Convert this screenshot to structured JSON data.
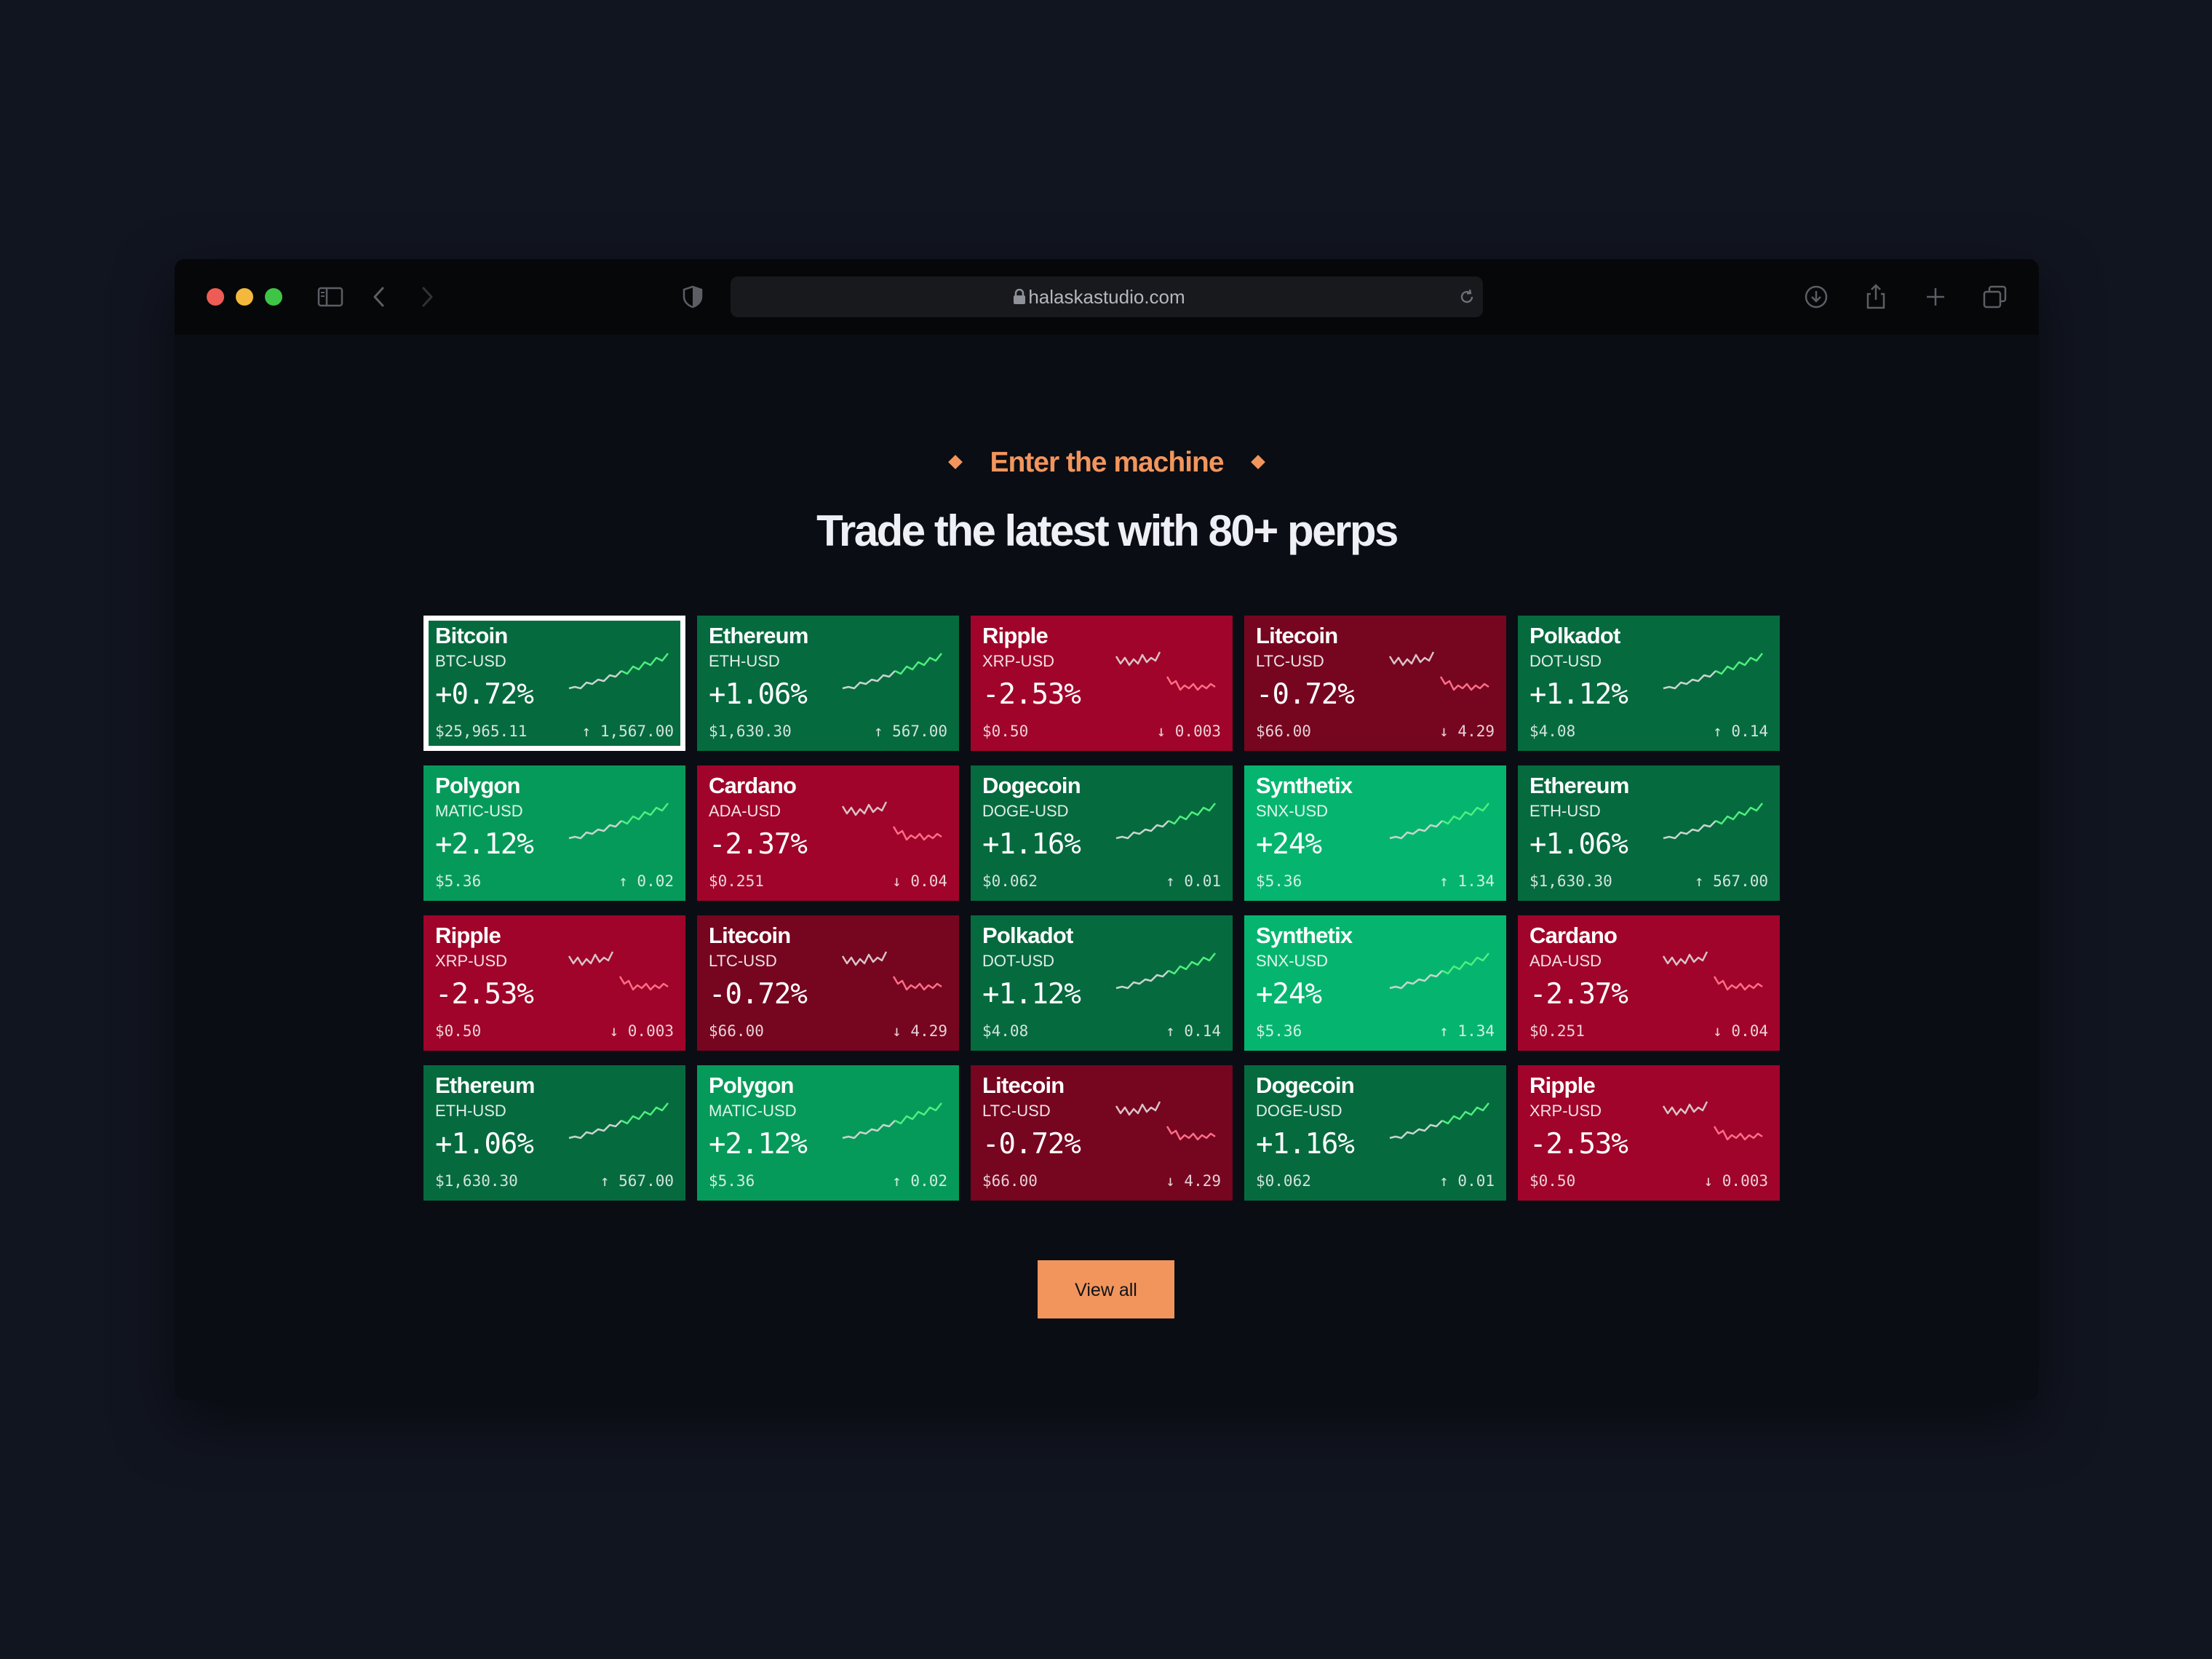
{
  "browser": {
    "url": "halaskastudio.com",
    "traffic_lights": [
      "#ee5c55",
      "#f4b93c",
      "#3fc545"
    ]
  },
  "hero": {
    "eyebrow": "Enter the machine",
    "headline": "Trade the latest with 80+ perps"
  },
  "colors": {
    "green_dark": "#066a3f",
    "green_mid": "#069a5a",
    "green_bright": "#05b56f",
    "red": "#a0042a",
    "red_dark": "#760520",
    "accent": "#f2955c"
  },
  "tiles": [
    {
      "name": "Bitcoin",
      "pair": "BTC-USD",
      "change": "+0.72%",
      "price": "$25,965.11",
      "delta": "1,567.00",
      "dir": "up",
      "shade": "green_dark",
      "selected": true
    },
    {
      "name": "Ethereum",
      "pair": "ETH-USD",
      "change": "+1.06%",
      "price": "$1,630.30",
      "delta": "567.00",
      "dir": "up",
      "shade": "green_dark"
    },
    {
      "name": "Ripple",
      "pair": "XRP-USD",
      "change": "-2.53%",
      "price": "$0.50",
      "delta": "0.003",
      "dir": "down",
      "shade": "red"
    },
    {
      "name": "Litecoin",
      "pair": "LTC-USD",
      "change": "-0.72%",
      "price": "$66.00",
      "delta": "4.29",
      "dir": "down",
      "shade": "red_dark"
    },
    {
      "name": "Polkadot",
      "pair": "DOT-USD",
      "change": "+1.12%",
      "price": "$4.08",
      "delta": "0.14",
      "dir": "up",
      "shade": "green_dark"
    },
    {
      "name": "Polygon",
      "pair": "MATIC-USD",
      "change": "+2.12%",
      "price": "$5.36",
      "delta": "0.02",
      "dir": "up",
      "shade": "green_mid"
    },
    {
      "name": "Cardano",
      "pair": "ADA-USD",
      "change": "-2.37%",
      "price": "$0.251",
      "delta": "0.04",
      "dir": "down",
      "shade": "red"
    },
    {
      "name": "Dogecoin",
      "pair": "DOGE-USD",
      "change": "+1.16%",
      "price": "$0.062",
      "delta": "0.01",
      "dir": "up",
      "shade": "green_dark"
    },
    {
      "name": "Synthetix",
      "pair": "SNX-USD",
      "change": "+24%",
      "price": "$5.36",
      "delta": "1.34",
      "dir": "up",
      "shade": "green_bright"
    },
    {
      "name": "Ethereum",
      "pair": "ETH-USD",
      "change": "+1.06%",
      "price": "$1,630.30",
      "delta": "567.00",
      "dir": "up",
      "shade": "green_dark"
    },
    {
      "name": "Ripple",
      "pair": "XRP-USD",
      "change": "-2.53%",
      "price": "$0.50",
      "delta": "0.003",
      "dir": "down",
      "shade": "red"
    },
    {
      "name": "Litecoin",
      "pair": "LTC-USD",
      "change": "-0.72%",
      "price": "$66.00",
      "delta": "4.29",
      "dir": "down",
      "shade": "red_dark"
    },
    {
      "name": "Polkadot",
      "pair": "DOT-USD",
      "change": "+1.12%",
      "price": "$4.08",
      "delta": "0.14",
      "dir": "up",
      "shade": "green_dark"
    },
    {
      "name": "Synthetix",
      "pair": "SNX-USD",
      "change": "+24%",
      "price": "$5.36",
      "delta": "1.34",
      "dir": "up",
      "shade": "green_bright"
    },
    {
      "name": "Cardano",
      "pair": "ADA-USD",
      "change": "-2.37%",
      "price": "$0.251",
      "delta": "0.04",
      "dir": "down",
      "shade": "red"
    },
    {
      "name": "Ethereum",
      "pair": "ETH-USD",
      "change": "+1.06%",
      "price": "$1,630.30",
      "delta": "567.00",
      "dir": "up",
      "shade": "green_dark"
    },
    {
      "name": "Polygon",
      "pair": "MATIC-USD",
      "change": "+2.12%",
      "price": "$5.36",
      "delta": "0.02",
      "dir": "up",
      "shade": "green_mid"
    },
    {
      "name": "Litecoin",
      "pair": "LTC-USD",
      "change": "-0.72%",
      "price": "$66.00",
      "delta": "4.29",
      "dir": "down",
      "shade": "red_dark"
    },
    {
      "name": "Dogecoin",
      "pair": "DOGE-USD",
      "change": "+1.16%",
      "price": "$0.062",
      "delta": "0.01",
      "dir": "up",
      "shade": "green_dark"
    },
    {
      "name": "Ripple",
      "pair": "XRP-USD",
      "change": "-2.53%",
      "price": "$0.50",
      "delta": "0.003",
      "dir": "down",
      "shade": "red"
    }
  ],
  "cta": {
    "label": "View all"
  }
}
